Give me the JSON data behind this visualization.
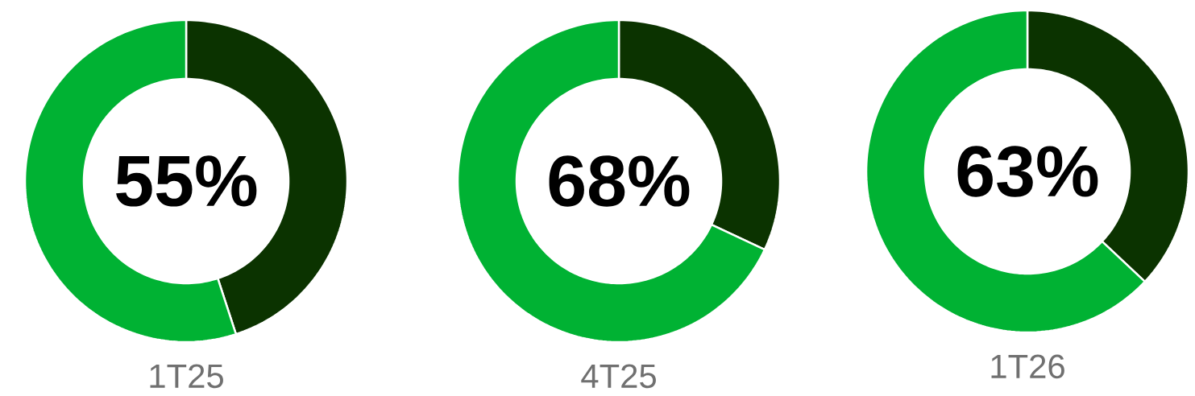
{
  "chart_data": [
    {
      "type": "donut",
      "categories": [
        null,
        null
      ],
      "values": [
        45,
        55
      ],
      "colors": [
        "#0b3300",
        "#00b233"
      ],
      "annotations": [
        "55%"
      ],
      "xlabel": "1T25"
    },
    {
      "type": "donut",
      "categories": [
        null,
        null
      ],
      "values": [
        32,
        68
      ],
      "colors": [
        "#0b3300",
        "#00b233"
      ],
      "annotations": [
        "68%"
      ],
      "xlabel": "4T25"
    },
    {
      "type": "donut",
      "categories": [
        null,
        null
      ],
      "values": [
        37,
        63
      ],
      "colors": [
        "#0b3300",
        "#00b233"
      ],
      "annotations": [
        "63%"
      ],
      "xlabel": "1T26"
    }
  ]
}
